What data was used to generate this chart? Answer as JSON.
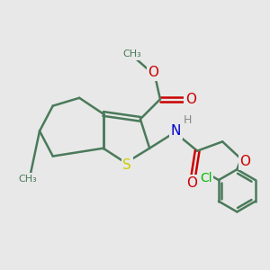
{
  "background_color": "#e8e8e8",
  "bond_color": "#4a7a5a",
  "bond_width": 1.8,
  "atom_colors": {
    "S": "#cccc00",
    "N": "#0000cc",
    "O": "#cc0000",
    "Cl": "#00bb00",
    "H": "#888888",
    "C": "#4a7a5a"
  },
  "font_size": 10,
  "fig_size": [
    3.0,
    3.0
  ],
  "dpi": 100
}
